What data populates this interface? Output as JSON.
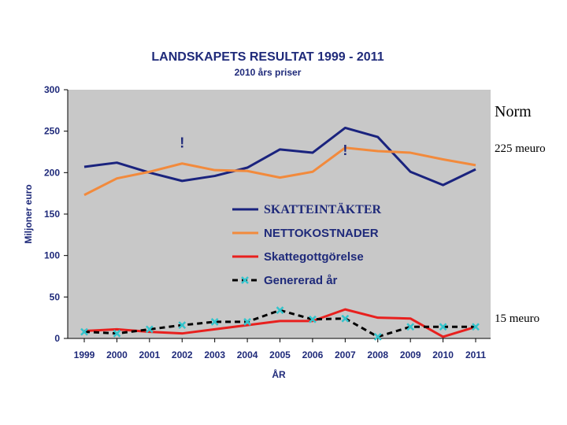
{
  "chart_data": {
    "type": "line",
    "title": "LANDSKAPETS RESULTAT 1999 - 2011",
    "subtitle": "2010 års priser",
    "xlabel": "ÅR",
    "ylabel": "Miljoner euro",
    "ylim": [
      0,
      300
    ],
    "yticks": [
      "300",
      "250",
      "200",
      "150",
      "100",
      "50",
      "0"
    ],
    "categories": [
      "1999",
      "2000",
      "2001",
      "2002",
      "2003",
      "2004",
      "2005",
      "2006",
      "2007",
      "2008",
      "2009",
      "2010",
      "2011"
    ],
    "grid": false,
    "legend_position": "center-right",
    "series": [
      {
        "name": "SKATTEINTÄKTER",
        "color": "#1a237e",
        "style": "solid",
        "values": [
          207,
          212,
          200,
          190,
          196,
          206,
          228,
          224,
          254,
          243,
          201,
          185,
          204
        ]
      },
      {
        "name": "NETTOKOSTNADER",
        "color": "#f28a3c",
        "style": "solid",
        "values": [
          173,
          193,
          201,
          211,
          203,
          202,
          194,
          201,
          230,
          226,
          224,
          216,
          209
        ]
      },
      {
        "name": "Skattegottgörelse",
        "color": "#e8201e",
        "style": "solid",
        "values": [
          9,
          11,
          8,
          6,
          11,
          16,
          21,
          21,
          35,
          25,
          24,
          2,
          14
        ]
      },
      {
        "name": "Genererad år",
        "color": "#000000",
        "marker_color": "#33c4cc",
        "style": "dashed",
        "values": [
          8,
          6,
          11,
          16,
          20,
          20,
          34,
          23,
          24,
          2,
          14,
          14,
          14
        ]
      }
    ],
    "annotations": [
      {
        "text": "!",
        "x": "2002",
        "y": 230
      },
      {
        "text": "!",
        "x": "2007",
        "y": 221
      }
    ]
  },
  "side_notes": {
    "norm": "Norm",
    "upper": "225 meuro",
    "lower": "15 meuro"
  }
}
